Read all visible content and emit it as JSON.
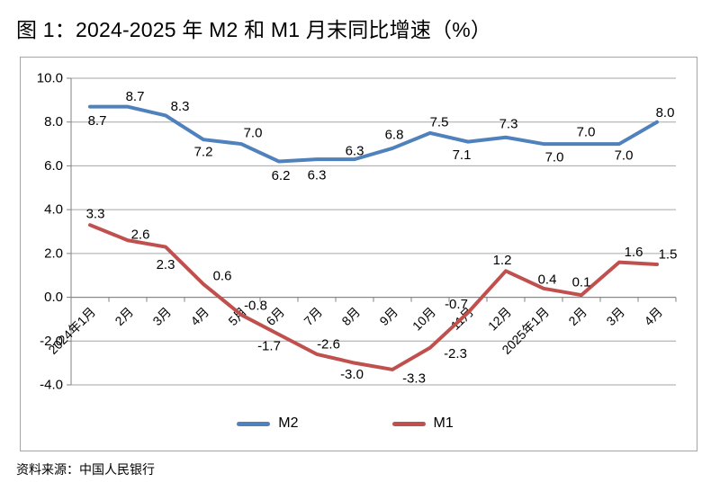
{
  "page": {
    "title": "图 1：2024-2025 年 M2 和 M1 月末同比增速（%）",
    "source": "资料来源：中国人民银行"
  },
  "chart_data": {
    "type": "line",
    "title": "图 1：2024-2025 年 M2 和 M1 月末同比增速（%）",
    "categories": [
      "2024年1月",
      "2月",
      "3月",
      "4月",
      "5月",
      "6月",
      "7月",
      "8月",
      "9月",
      "10月",
      "11月",
      "12月",
      "2025年1月",
      "2月",
      "3月",
      "4月"
    ],
    "series": [
      {
        "name": "M2",
        "color": "#4F81BD",
        "values": [
          8.7,
          8.7,
          8.3,
          7.2,
          7.0,
          6.2,
          6.3,
          6.3,
          6.8,
          7.5,
          7.1,
          7.3,
          7.0,
          7.0,
          7.0,
          8.0
        ],
        "label_offsets": [
          [
            8,
            16
          ],
          [
            8,
            -11
          ],
          [
            16,
            -10
          ],
          [
            0,
            14
          ],
          [
            13,
            -12
          ],
          [
            2,
            16
          ],
          [
            0,
            18
          ],
          [
            0,
            -9
          ],
          [
            2,
            -15
          ],
          [
            10,
            -12
          ],
          [
            -7,
            15
          ],
          [
            3,
            -15
          ],
          [
            12,
            15
          ],
          [
            5,
            -13
          ],
          [
            5,
            13
          ],
          [
            9,
            -10
          ]
        ]
      },
      {
        "name": "M1",
        "color": "#C0504D",
        "values": [
          3.3,
          2.6,
          2.3,
          0.6,
          -0.8,
          -1.7,
          -2.6,
          -3.0,
          -3.3,
          -2.3,
          -0.7,
          1.2,
          0.4,
          0.1,
          1.6,
          1.5
        ],
        "label_offsets": [
          [
            6,
            -12
          ],
          [
            14,
            -6
          ],
          [
            0,
            20
          ],
          [
            21,
            -9
          ],
          [
            16,
            -10
          ],
          [
            -11,
            13
          ],
          [
            13,
            -11
          ],
          [
            -3,
            13
          ],
          [
            24,
            10
          ],
          [
            28,
            7
          ],
          [
            -13,
            -9
          ],
          [
            -4,
            -12
          ],
          [
            4,
            -10
          ],
          [
            0,
            -14
          ],
          [
            16,
            -11
          ],
          [
            12,
            -11
          ]
        ]
      }
    ],
    "ylim": [
      -4.0,
      10.0
    ],
    "y_ticks": [
      10,
      8,
      6,
      4,
      2,
      0,
      -2,
      -4
    ],
    "y_tick_labels": [
      "10.0",
      "8.0",
      "6.0",
      "4.0",
      "2.0",
      "0.0",
      "-2.0",
      "-4.0"
    ],
    "grid": true,
    "legend_position": "bottom",
    "value_decimals": 1
  },
  "colors": {
    "m2_line": "#4F81BD",
    "m1_line": "#C0504D",
    "gridline": "#A6A6A6",
    "axis": "#808080",
    "frame_border": "#A6A6A6",
    "text": "#000000",
    "background": "#FFFFFF"
  }
}
